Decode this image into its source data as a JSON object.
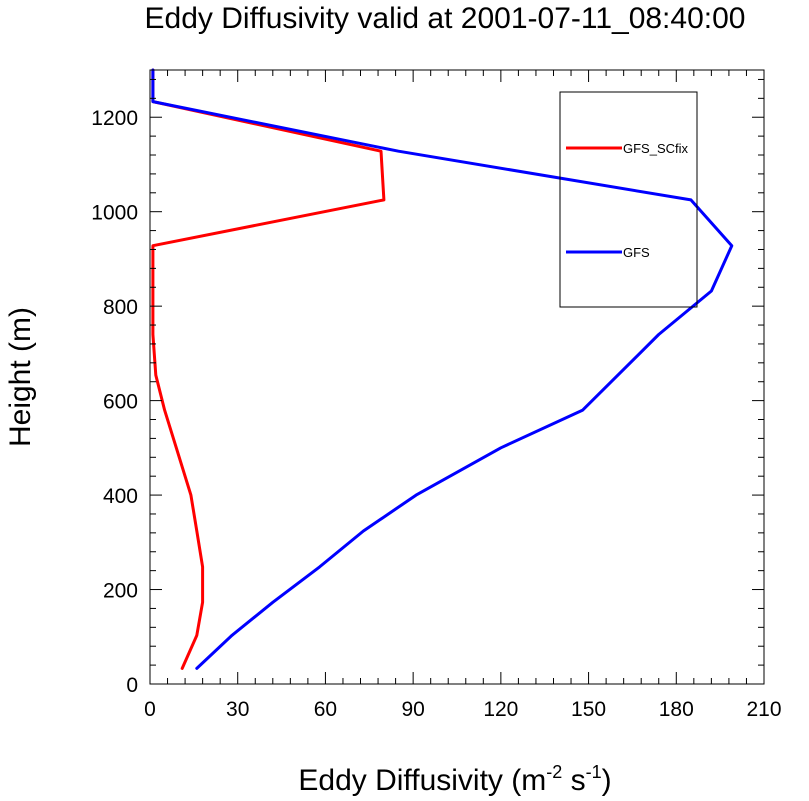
{
  "chart_data": {
    "type": "line",
    "title": "Eddy Diffusivity valid at 2001-07-11_08:40:00",
    "xlabel_main": "Eddy Diffusivity (m",
    "xlabel_sup1": "-2",
    "xlabel_mid": " s",
    "xlabel_sup2": "-1",
    "xlabel_end": ")",
    "ylabel": "Height (m)",
    "xlim": [
      0,
      210
    ],
    "ylim": [
      0,
      1300
    ],
    "xticks": [
      0,
      30,
      60,
      90,
      120,
      150,
      180,
      210
    ],
    "yticks": [
      0,
      200,
      400,
      600,
      800,
      1000,
      1200
    ],
    "grid": false,
    "legend_position": "top-right",
    "series": [
      {
        "name": "GFS_SCfix",
        "color": "#ff0000",
        "points": [
          [
            11,
            33
          ],
          [
            16,
            103
          ],
          [
            18,
            173
          ],
          [
            18,
            248
          ],
          [
            16,
            324
          ],
          [
            14,
            400
          ],
          [
            9,
            500
          ],
          [
            5,
            580
          ],
          [
            2,
            654
          ],
          [
            1,
            740
          ],
          [
            1,
            820
          ],
          [
            1,
            928
          ],
          [
            80,
            1025
          ],
          [
            79,
            1128
          ],
          [
            1,
            1233
          ],
          [
            1,
            1300
          ]
        ]
      },
      {
        "name": "GFS",
        "color": "#0000ff",
        "points": [
          [
            16,
            33
          ],
          [
            28,
            103
          ],
          [
            42,
            173
          ],
          [
            58,
            248
          ],
          [
            73,
            324
          ],
          [
            91,
            400
          ],
          [
            120,
            500
          ],
          [
            148,
            580
          ],
          [
            174,
            740
          ],
          [
            192,
            832
          ],
          [
            199,
            928
          ],
          [
            185,
            1025
          ],
          [
            85,
            1128
          ],
          [
            1,
            1233
          ],
          [
            1,
            1300
          ]
        ]
      }
    ]
  }
}
